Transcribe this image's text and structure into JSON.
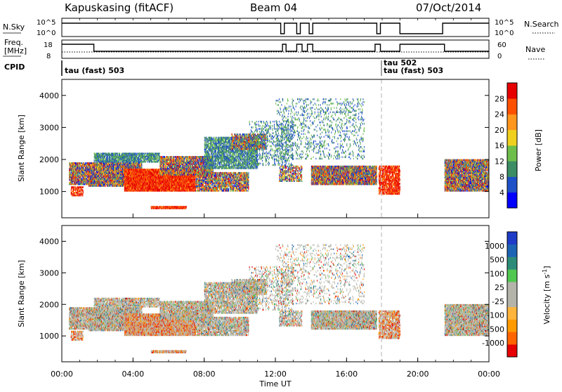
{
  "header": {
    "station": "Kapuskasing (fitACF)",
    "beam": "Beam 04",
    "date": "07/Oct/2014"
  },
  "top_panels": {
    "nsky_label": "N.Sky",
    "nsky_ticks": [
      "10^5",
      "10^0"
    ],
    "nsearch_label": "N.Search",
    "nsearch_ticks": [
      "10^5",
      "10^0"
    ],
    "freq_label_1": "Freq.",
    "freq_label_2": "[MHz]",
    "freq_ticks": [
      "18",
      "8"
    ],
    "nave_label": "Nave",
    "nave_ticks": [
      "60",
      "0"
    ],
    "cpid_label": "CPID",
    "cpid_entries": [
      "tau (fast) 503",
      "tau  502",
      "tau (fast) 503"
    ]
  },
  "chart_data": [
    {
      "type": "heatmap",
      "ylabel": "Slant Range [km]",
      "yticks": [
        "4000",
        "3000",
        "2000",
        "1000"
      ],
      "ylim": [
        180,
        4500
      ],
      "colorbar_label": "Power [dB]",
      "colorbar_ticks": [
        "28",
        "24",
        "20",
        "16",
        "12",
        "8",
        "4"
      ],
      "colorscale": [
        "#0000ff",
        "#1e50c8",
        "#3c8c64",
        "#6ebe4b",
        "#f0d01e",
        "#ff961e",
        "#ff5000",
        "#e60000"
      ]
    },
    {
      "type": "heatmap",
      "ylabel": "Slant Range [km]",
      "yticks": [
        "4000",
        "3000",
        "2000",
        "1000"
      ],
      "ylim": [
        180,
        4500
      ],
      "colorbar_label": "Velocity [m s",
      "colorbar_label_sup": "-1",
      "colorbar_label_end": "]",
      "colorbar_ticks": [
        "1000",
        "500",
        "100",
        "25",
        "-25",
        "-100",
        "-500",
        "-1000"
      ],
      "colorscale": [
        "#e60000",
        "#ff6400",
        "#ff9a00",
        "#ffb43c",
        "#b4b4aa",
        "#b4b4aa",
        "#50c850",
        "#2d8c78",
        "#1e64b4",
        "#1e3cc8"
      ]
    }
  ],
  "x_axis": {
    "ticks": [
      "00:00",
      "04:00",
      "08:00",
      "12:00",
      "16:00",
      "20:00",
      "00:00"
    ],
    "label": "Time UT"
  }
}
